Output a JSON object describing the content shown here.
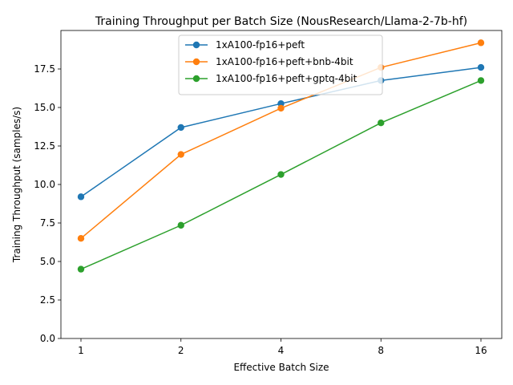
{
  "chart_data": {
    "type": "line",
    "title": "Training Throughput per Batch Size (NousResearch/Llama-2-7b-hf)",
    "xlabel": "Effective Batch Size",
    "ylabel": "Training Throughput (samples/s)",
    "categories": [
      "1",
      "2",
      "4",
      "8",
      "16"
    ],
    "ylim": [
      0,
      20
    ],
    "yticks": [
      "0.0",
      "2.5",
      "5.0",
      "7.5",
      "10.0",
      "12.5",
      "15.0",
      "17.5"
    ],
    "grid": false,
    "legend_position": "upper center",
    "series": [
      {
        "name": "1xA100-fp16+peft",
        "color": "#1f77b4",
        "values": [
          9.2,
          13.7,
          15.25,
          16.75,
          17.6
        ]
      },
      {
        "name": "1xA100-fp16+peft+bnb-4bit",
        "color": "#ff7f0e",
        "values": [
          6.5,
          11.95,
          14.95,
          17.6,
          19.2
        ]
      },
      {
        "name": "1xA100-fp16+peft+gptq-4bit",
        "color": "#2ca02c",
        "values": [
          4.5,
          7.35,
          10.65,
          14.0,
          16.75
        ]
      }
    ]
  }
}
